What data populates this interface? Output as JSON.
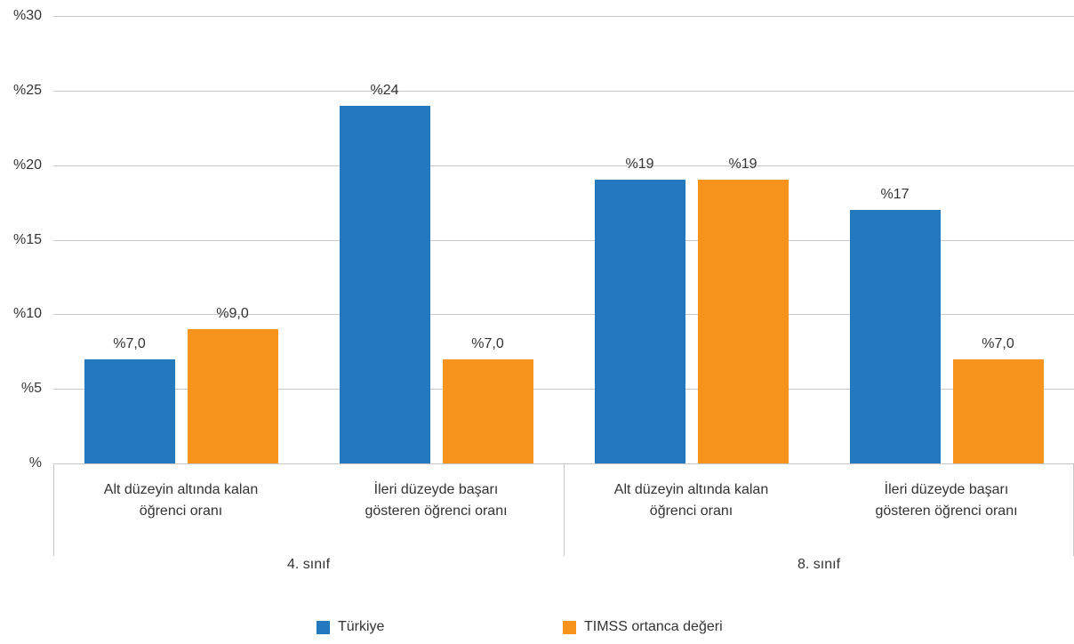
{
  "chart_data": {
    "type": "bar",
    "groups": [
      {
        "label": "4. sınıf",
        "categories": [
          "Alt düzeyin altında kalan öğrenci oranı",
          "İleri düzeyde başarı gösteren öğrenci oranı"
        ]
      },
      {
        "label": "8. sınıf",
        "categories": [
          "Alt düzeyin altında kalan öğrenci oranı",
          "İleri düzeyde başarı gösteren öğrenci oranı"
        ]
      }
    ],
    "series": [
      {
        "name": "Türkiye",
        "color": "#2478be",
        "values": [
          7.0,
          24,
          19,
          17
        ],
        "value_labels": [
          "%7,0",
          "%24",
          "%19",
          "%17"
        ]
      },
      {
        "name": "TIMSS ortanca değeri",
        "color": "#f7941d",
        "values": [
          9.0,
          7.0,
          19,
          7.0
        ],
        "value_labels": [
          "%9,0",
          "%7,0",
          "%19",
          "%7,0"
        ]
      }
    ],
    "ylim": [
      0,
      30
    ],
    "yticks": [
      {
        "value": 0,
        "label": "%"
      },
      {
        "value": 5,
        "label": "%5"
      },
      {
        "value": 10,
        "label": "%10"
      },
      {
        "value": 15,
        "label": "%15"
      },
      {
        "value": 20,
        "label": "%20"
      },
      {
        "value": 25,
        "label": "%25"
      },
      {
        "value": 30,
        "label": "%30"
      }
    ],
    "grid": true,
    "legend": "bottom"
  }
}
